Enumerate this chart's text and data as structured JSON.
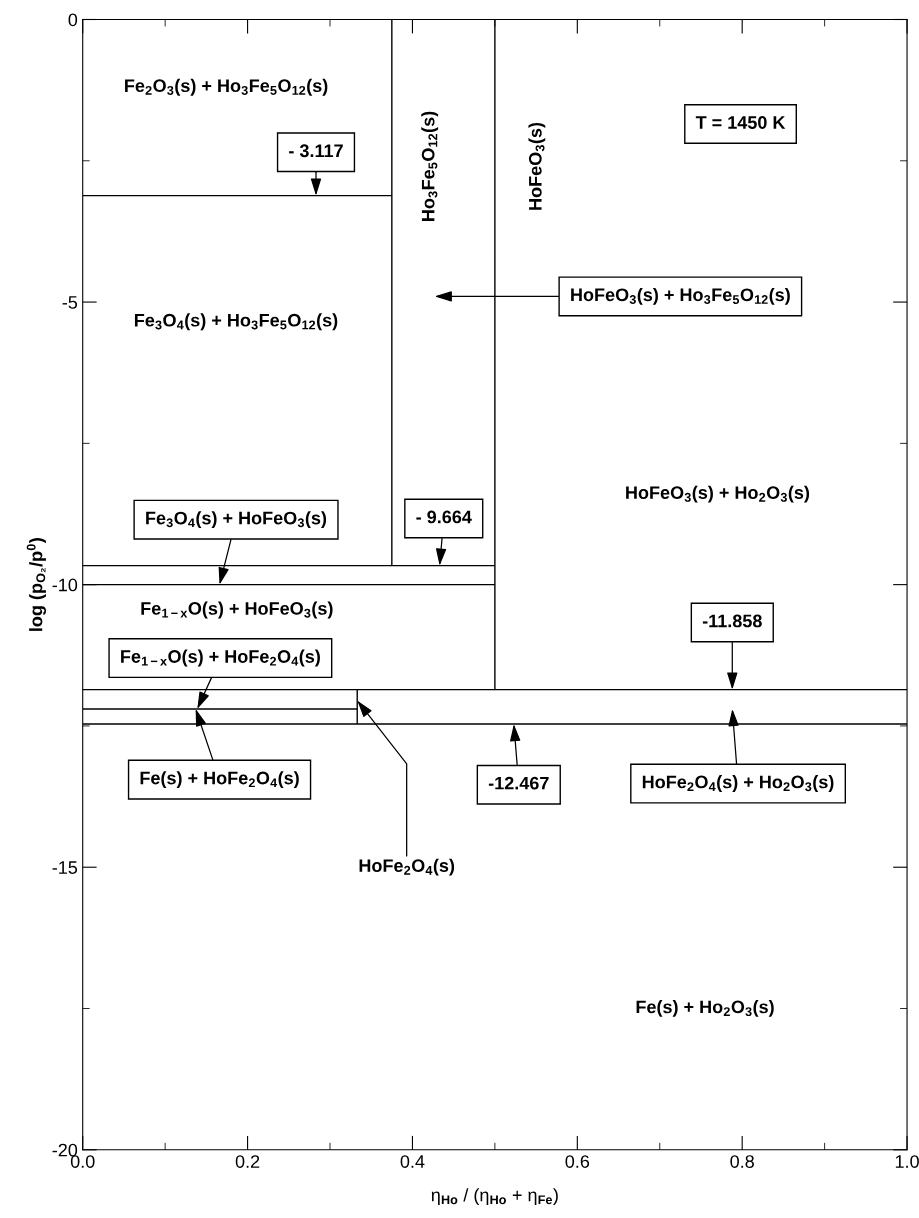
{
  "chart_data": {
    "type": "line",
    "xlabel": "η$_{Ho}$ / (η$_{Ho}$ + η$_{Fe}$)",
    "ylabel": "log (p$_{O₂}$/p$^{0}$)",
    "xlim": [
      0,
      1
    ],
    "ylim": [
      -20,
      0
    ],
    "xticks": [
      {
        "value": 0,
        "label": "0.0"
      },
      {
        "value": 0.1,
        "label": null
      },
      {
        "value": 0.2,
        "label": "0.2"
      },
      {
        "value": 0.3,
        "label": null
      },
      {
        "value": 0.4,
        "label": "0.4"
      },
      {
        "value": 0.5,
        "label": null
      },
      {
        "value": 0.6,
        "label": "0.6"
      },
      {
        "value": 0.7,
        "label": null
      },
      {
        "value": 0.8,
        "label": "0.8"
      },
      {
        "value": 0.9,
        "label": null
      },
      {
        "value": 1,
        "label": "1.0"
      }
    ],
    "yticks": [
      -20,
      {
        "value": -17.5,
        "label": null
      },
      -15,
      {
        "value": -12.5,
        "label": null
      },
      -10,
      {
        "value": -7.5,
        "label": null
      },
      -5,
      {
        "value": -2.5,
        "label": null
      },
      0
    ],
    "grid": false,
    "legend": false,
    "marker": "none",
    "line_style": "solid",
    "series": [
      {
        "color": "#000000",
        "x": [
          0,
          0.375
        ],
        "values": [
          -3.117,
          -3.117
        ]
      },
      {
        "color": "#000000",
        "x": [
          0.375,
          0.375
        ],
        "values": [
          0,
          -9.664
        ]
      },
      {
        "color": "#000000",
        "x": [
          0.5,
          0.5,
          1
        ],
        "values": [
          0,
          -11.858,
          -11.858
        ]
      },
      {
        "color": "#000000",
        "x": [
          0,
          0.5
        ],
        "values": [
          -9.664,
          -9.664
        ]
      },
      {
        "color": "#000000",
        "x": [
          0,
          0.5
        ],
        "values": [
          -10.0,
          -10.0
        ]
      },
      {
        "color": "#000000",
        "x": [
          0,
          0.5
        ],
        "values": [
          -11.858,
          -11.858
        ]
      },
      {
        "color": "#000000",
        "x": [
          0,
          0.333
        ],
        "values": [
          -12.2,
          -12.2
        ]
      },
      {
        "color": "#000000",
        "x": [
          0.333,
          0.333
        ],
        "values": [
          -11.858,
          -12.467
        ]
      },
      {
        "color": "#000000",
        "x": [
          0,
          1
        ],
        "values": [
          -12.467,
          -12.467
        ]
      }
    ],
    "annotations": [
      "Fe$_{2}$O$_{3}$(s) + Ho$_{3}$Fe$_{5}$O$_{12}$(s)",
      {
        "text": "- 3.117",
        "x": 0.283,
        "y": -3.117
      },
      "Ho$_{3}$Fe$_{5}$O$_{12}$(s)",
      "HoFeO$_{3}$(s)",
      "T = 1450 K",
      "HoFeO$_{3}$(s) + Ho$_{3}$Fe$_{5}$O$_{12}$(s)",
      "Fe$_{3}$O$_{4}$(s) + Ho$_{3}$Fe$_{5}$O$_{12}$(s)",
      "HoFeO$_{3}$(s) + Ho$_{2}$O$_{3}$(s)",
      {
        "text": "Fe$_{3}$O$_{4}$(s) + HoFeO$_{3}$(s)",
        "x": 0.166,
        "y": -10.0
      },
      {
        "text": "- 9.664",
        "x": 0.433,
        "y": -9.664
      },
      "Fe$_{1−x}$O(s) + HoFeO$_{3}$(s)",
      {
        "text": "-11.858",
        "x": 0.788,
        "y": -11.858
      },
      {
        "text": "Fe$_{1−x}$O(s) + HoFe$_{2}$O$_{4}$(s)",
        "x": 0.139,
        "y": -12.2
      },
      {
        "text": "Fe(s) + HoFe$_{2}$O$_{4}$(s)",
        "x": 0.137,
        "y": -12.2
      },
      {
        "text": "-12.467",
        "x": 0.523,
        "y": -12.467
      },
      "HoFe$_{2}$O$_{4}$(s) + Ho$_{2}$O$_{3}$(s)",
      {
        "text": "HoFe$_{2}$O$_{4}$(s)",
        "x": 0.333,
        "y": -12.05
      },
      "Fe(s) + Ho$_{2}$O$_{3}$(s)"
    ]
  }
}
